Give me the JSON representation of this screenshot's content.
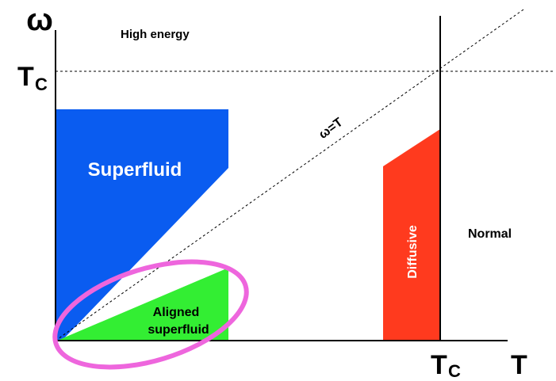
{
  "axes": {
    "y_label": "ω",
    "x_label": "T",
    "y_tc": {
      "main": "T",
      "sub": "C"
    },
    "x_tc": {
      "main": "T",
      "sub": "C"
    }
  },
  "regions": {
    "high_energy": "High energy",
    "superfluid": "Superfluid",
    "diagonal": "ω=T",
    "diffusive": "Diffusive",
    "normal": "Normal",
    "aligned": [
      "Aligned",
      "superfluid"
    ]
  }
}
